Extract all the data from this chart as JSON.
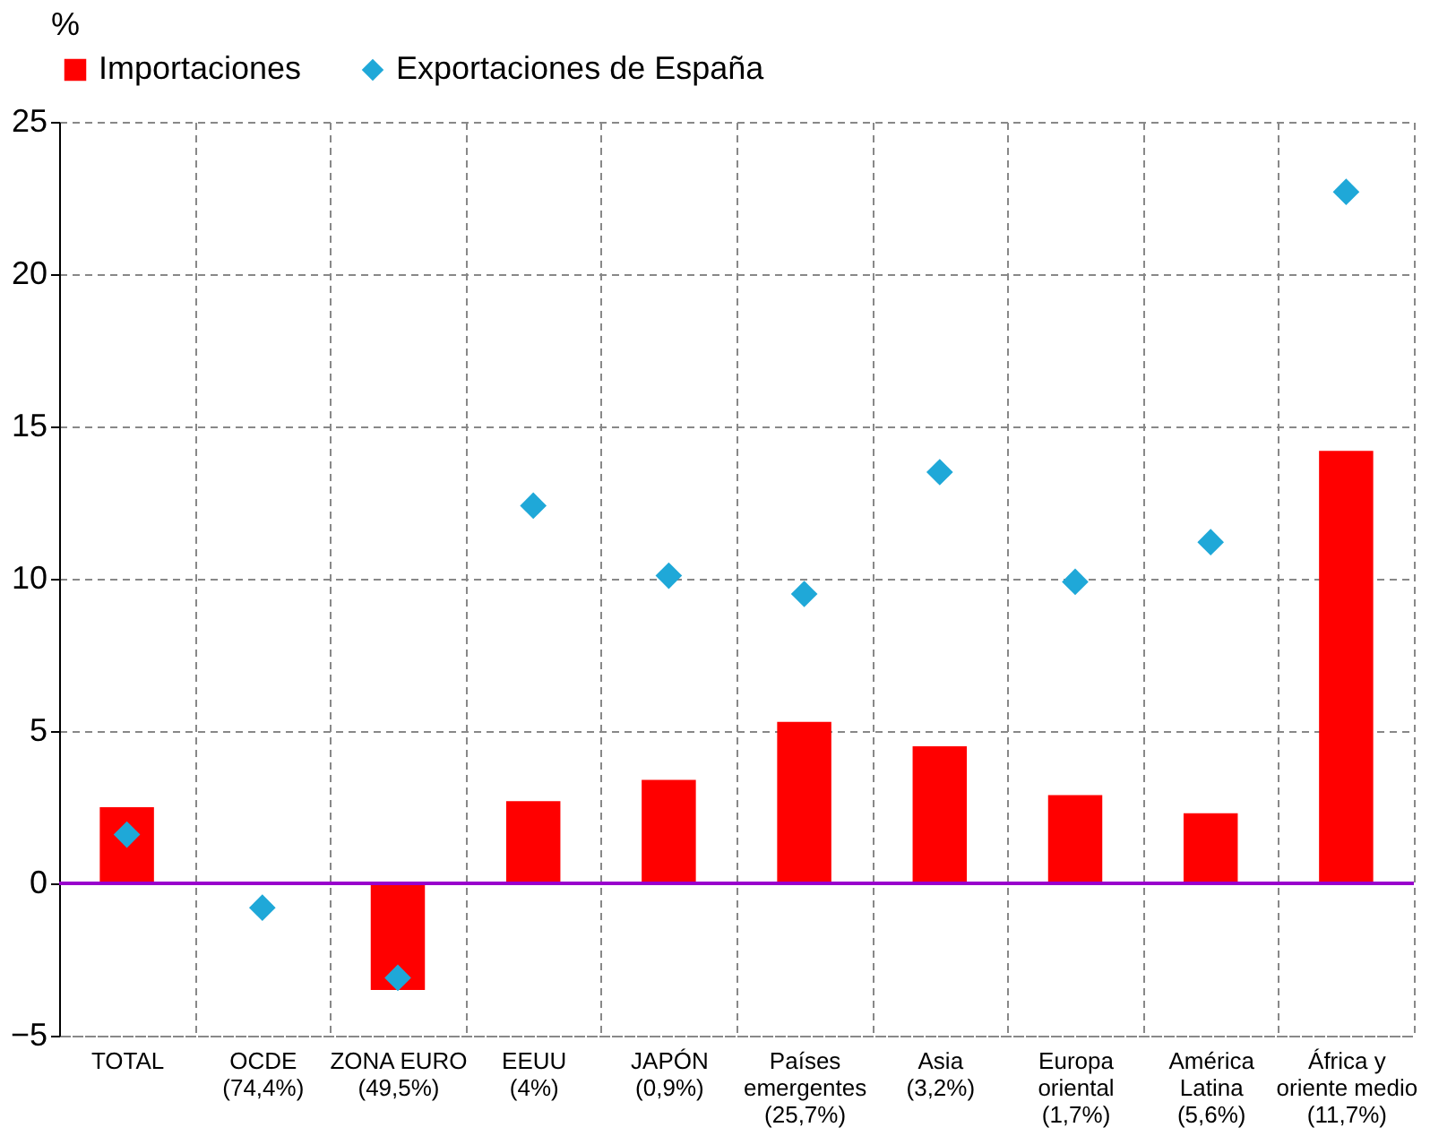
{
  "chart_data": {
    "type": "bar",
    "ylabel": "%",
    "categories": [
      "TOTAL",
      "OCDE\n(74,4%)",
      "ZONA EURO\n(49,5%)",
      "EEUU\n(4%)",
      "JAPÓN\n(0,9%)",
      "Países\nemergentes\n(25,7%)",
      "Asia\n(3,2%)",
      "Europa\noriental\n(1,7%)",
      "América\nLatina\n(5,6%)",
      "África y\noriente medio\n(11,7%)"
    ],
    "series": [
      {
        "name": "Importaciones",
        "color": "#ff0000",
        "values": [
          2.5,
          0,
          -3.5,
          2.7,
          3.4,
          5.3,
          4.5,
          2.9,
          2.3,
          14.2
        ]
      },
      {
        "name": "Exportaciones de España",
        "type": "scatter",
        "marker": "diamond",
        "color": "#1fa8d8",
        "values": [
          1.6,
          -0.8,
          -3.1,
          12.4,
          10.1,
          9.5,
          13.5,
          9.9,
          11.2,
          22.7
        ]
      }
    ],
    "ylim": [
      -5,
      25
    ],
    "yticks": [
      -5,
      0,
      5,
      10,
      15,
      20,
      25
    ],
    "grid": true,
    "legend": "top",
    "ref_lines": [
      {
        "axis": "y",
        "value": 0,
        "color": "#9900cc"
      }
    ]
  }
}
